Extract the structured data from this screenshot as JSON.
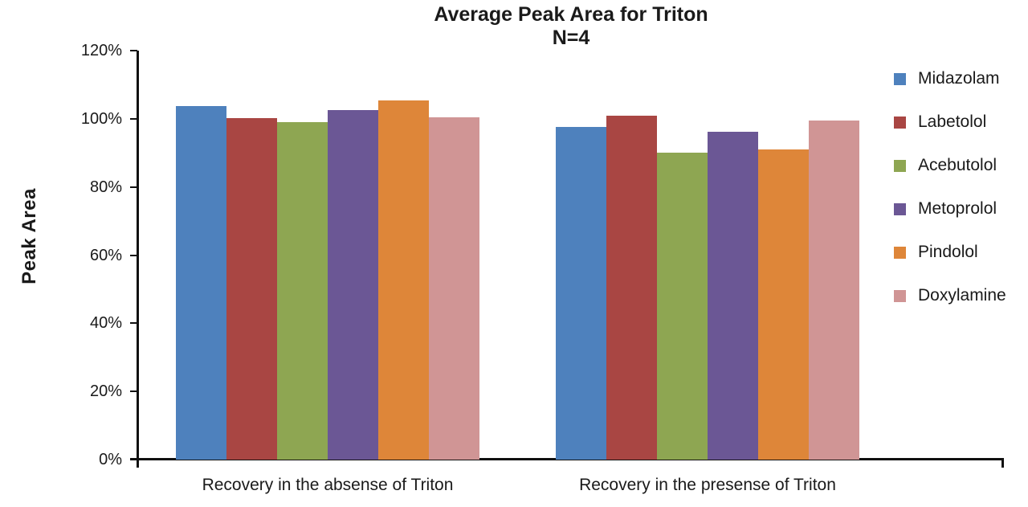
{
  "title": {
    "line1": "Average Peak Area for Triton",
    "line2": "N=4"
  },
  "y_axis": {
    "label": "Peak Area",
    "ticks": [
      "0%",
      "20%",
      "40%",
      "60%",
      "80%",
      "100%",
      "120%"
    ]
  },
  "chart_data": {
    "type": "bar",
    "title": "Average Peak Area for Triton",
    "subtitle": "N=4",
    "categories": [
      "Recovery in the absense of Triton",
      "Recovery in the presense of Triton"
    ],
    "series": [
      {
        "name": "Midazolam",
        "color": "#4E81BD",
        "values": [
          103.8,
          97.6
        ]
      },
      {
        "name": "Labetolol",
        "color": "#A94643",
        "values": [
          100.3,
          100.9
        ]
      },
      {
        "name": "Acebutolol",
        "color": "#8EA652",
        "values": [
          99.0,
          90.1
        ]
      },
      {
        "name": "Metoprolol",
        "color": "#6B5795",
        "values": [
          102.5,
          96.1
        ]
      },
      {
        "name": "Pindolol",
        "color": "#DE8639",
        "values": [
          105.4,
          91.0
        ]
      },
      {
        "name": "Doxylamine",
        "color": "#D09595",
        "values": [
          100.4,
          99.6
        ]
      }
    ],
    "xlabel": "",
    "ylabel": "Peak Area",
    "ylim": [
      0,
      120
    ],
    "y_tick_step": 20,
    "y_tick_format": "percent",
    "grid": false,
    "legend_position": "right"
  }
}
